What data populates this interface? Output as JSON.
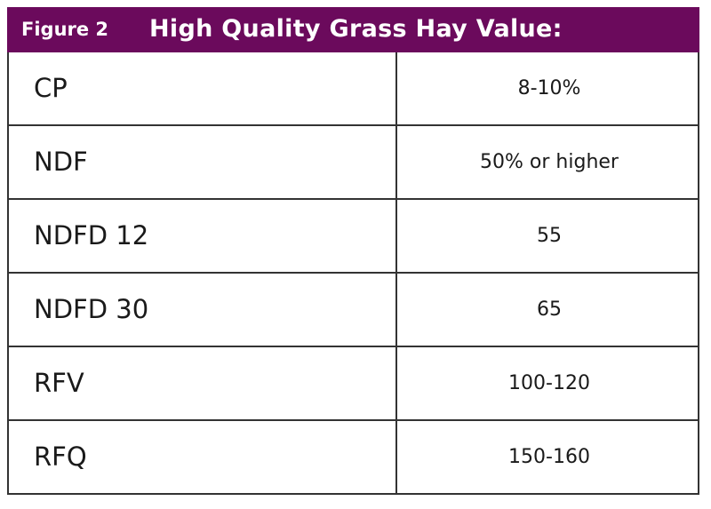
{
  "header": {
    "label": "Figure 2",
    "title": "High Quality Grass Hay Value:"
  },
  "table": {
    "rows": [
      [
        "CP",
        "8-10%"
      ],
      [
        "NDF",
        "50% or higher"
      ],
      [
        "NDFD 12",
        "55"
      ],
      [
        "NDFD 30",
        "65"
      ],
      [
        "RFV",
        "100-120"
      ],
      [
        "RFQ",
        "150-160"
      ]
    ]
  }
}
